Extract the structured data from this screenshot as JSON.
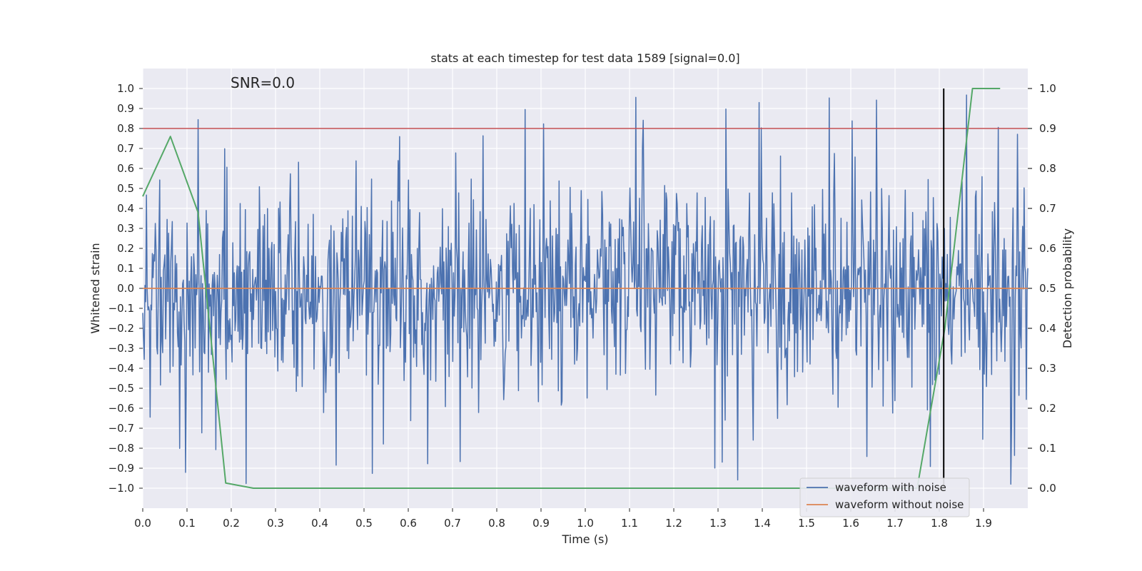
{
  "chart_data": {
    "type": "line",
    "title": "stats at each timestep for test data 1589 [signal=0.0]",
    "annotation": "SNR=0.0",
    "xlabel": "Time (s)",
    "ylabel_left": "Whitened strain",
    "ylabel_right": "Detection probability",
    "xlim": [
      0.0,
      2.0
    ],
    "ylim_left": [
      -1.1,
      1.1
    ],
    "ylim_right": [
      -0.05,
      1.05
    ],
    "x_ticks": [
      0.0,
      0.1,
      0.2,
      0.3,
      0.4,
      0.5,
      0.6,
      0.7,
      0.8,
      0.9,
      1.0,
      1.1,
      1.2,
      1.3,
      1.4,
      1.5,
      1.6,
      1.7,
      1.8,
      1.9
    ],
    "x_tick_labels": [
      "0.0",
      "0.1",
      "0.2",
      "0.3",
      "0.4",
      "0.5",
      "0.6",
      "0.7",
      "0.8",
      "0.9",
      "1.0",
      "1.1",
      "1.2",
      "1.3",
      "1.4",
      "1.5",
      "1.6",
      "1.7",
      "1.8",
      "1.9"
    ],
    "y_left_ticks": [
      1.0,
      0.9,
      0.8,
      0.7,
      0.6,
      0.5,
      0.4,
      0.3,
      0.2,
      0.1,
      0.0,
      -0.1,
      -0.2,
      -0.3,
      -0.4,
      -0.5,
      -0.6,
      -0.7,
      -0.8,
      -0.9,
      -1.0
    ],
    "y_left_tick_labels": [
      "1.0",
      "0.9",
      "0.8",
      "0.7",
      "0.6",
      "0.5",
      "0.4",
      "0.3",
      "0.2",
      "0.1",
      "0.0",
      "−0.1",
      "−0.2",
      "−0.3",
      "−0.4",
      "−0.5",
      "−0.6",
      "−0.7",
      "−0.8",
      "−0.9",
      "−1.0"
    ],
    "y_right_ticks": [
      1.0,
      0.9,
      0.8,
      0.7,
      0.6,
      0.5,
      0.4,
      0.3,
      0.2,
      0.1,
      0.0
    ],
    "y_right_tick_labels": [
      "1.0",
      "0.9",
      "0.8",
      "0.7",
      "0.6",
      "0.5",
      "0.4",
      "0.3",
      "0.2",
      "0.1",
      "0.0"
    ],
    "threshold": {
      "axis": "right",
      "value": 0.9,
      "color": "#c44e52"
    },
    "marker_line": {
      "x": 1.81,
      "y_from": -1.0,
      "y_to": 1.0,
      "color": "#000000"
    },
    "series": [
      {
        "name": "waveform with noise",
        "axis": "left",
        "color": "#4c72b0",
        "kind": "noise",
        "x_start": 0.0,
        "x_end": 2.0,
        "n_points": 1200,
        "seed": 1589,
        "typical_range": [
          -0.6,
          0.55
        ],
        "extremes": [
          -0.98,
          0.98
        ]
      },
      {
        "name": "waveform without noise",
        "axis": "left",
        "color": "#dd8452",
        "x": [
          0.0,
          2.0
        ],
        "y": [
          0.0,
          0.0
        ]
      },
      {
        "name": "Detection probability",
        "axis": "right",
        "color": "#55a868",
        "legend": false,
        "x": [
          0.0,
          0.0625,
          0.125,
          0.1875,
          0.25,
          0.3125,
          0.375,
          0.4375,
          0.5,
          0.5625,
          0.625,
          0.6875,
          0.75,
          0.8125,
          0.875,
          0.9375,
          1.0,
          1.0625,
          1.125,
          1.1875,
          1.25,
          1.3125,
          1.375,
          1.4375,
          1.5,
          1.5625,
          1.625,
          1.6875,
          1.75,
          1.8125,
          1.875,
          1.9375
        ],
        "y": [
          0.73,
          0.88,
          0.69,
          0.013,
          0.0,
          0.0,
          0.0,
          0.0,
          0.0,
          0.0,
          0.0,
          0.0,
          0.0,
          0.0,
          0.0,
          0.0,
          0.0,
          0.0,
          0.0,
          0.0,
          0.0,
          0.0,
          0.0,
          0.0,
          0.0,
          0.0,
          0.0,
          0.0,
          0.0,
          0.4,
          1.0,
          1.0
        ]
      }
    ],
    "legend_position": "lower-right",
    "grid": true
  }
}
